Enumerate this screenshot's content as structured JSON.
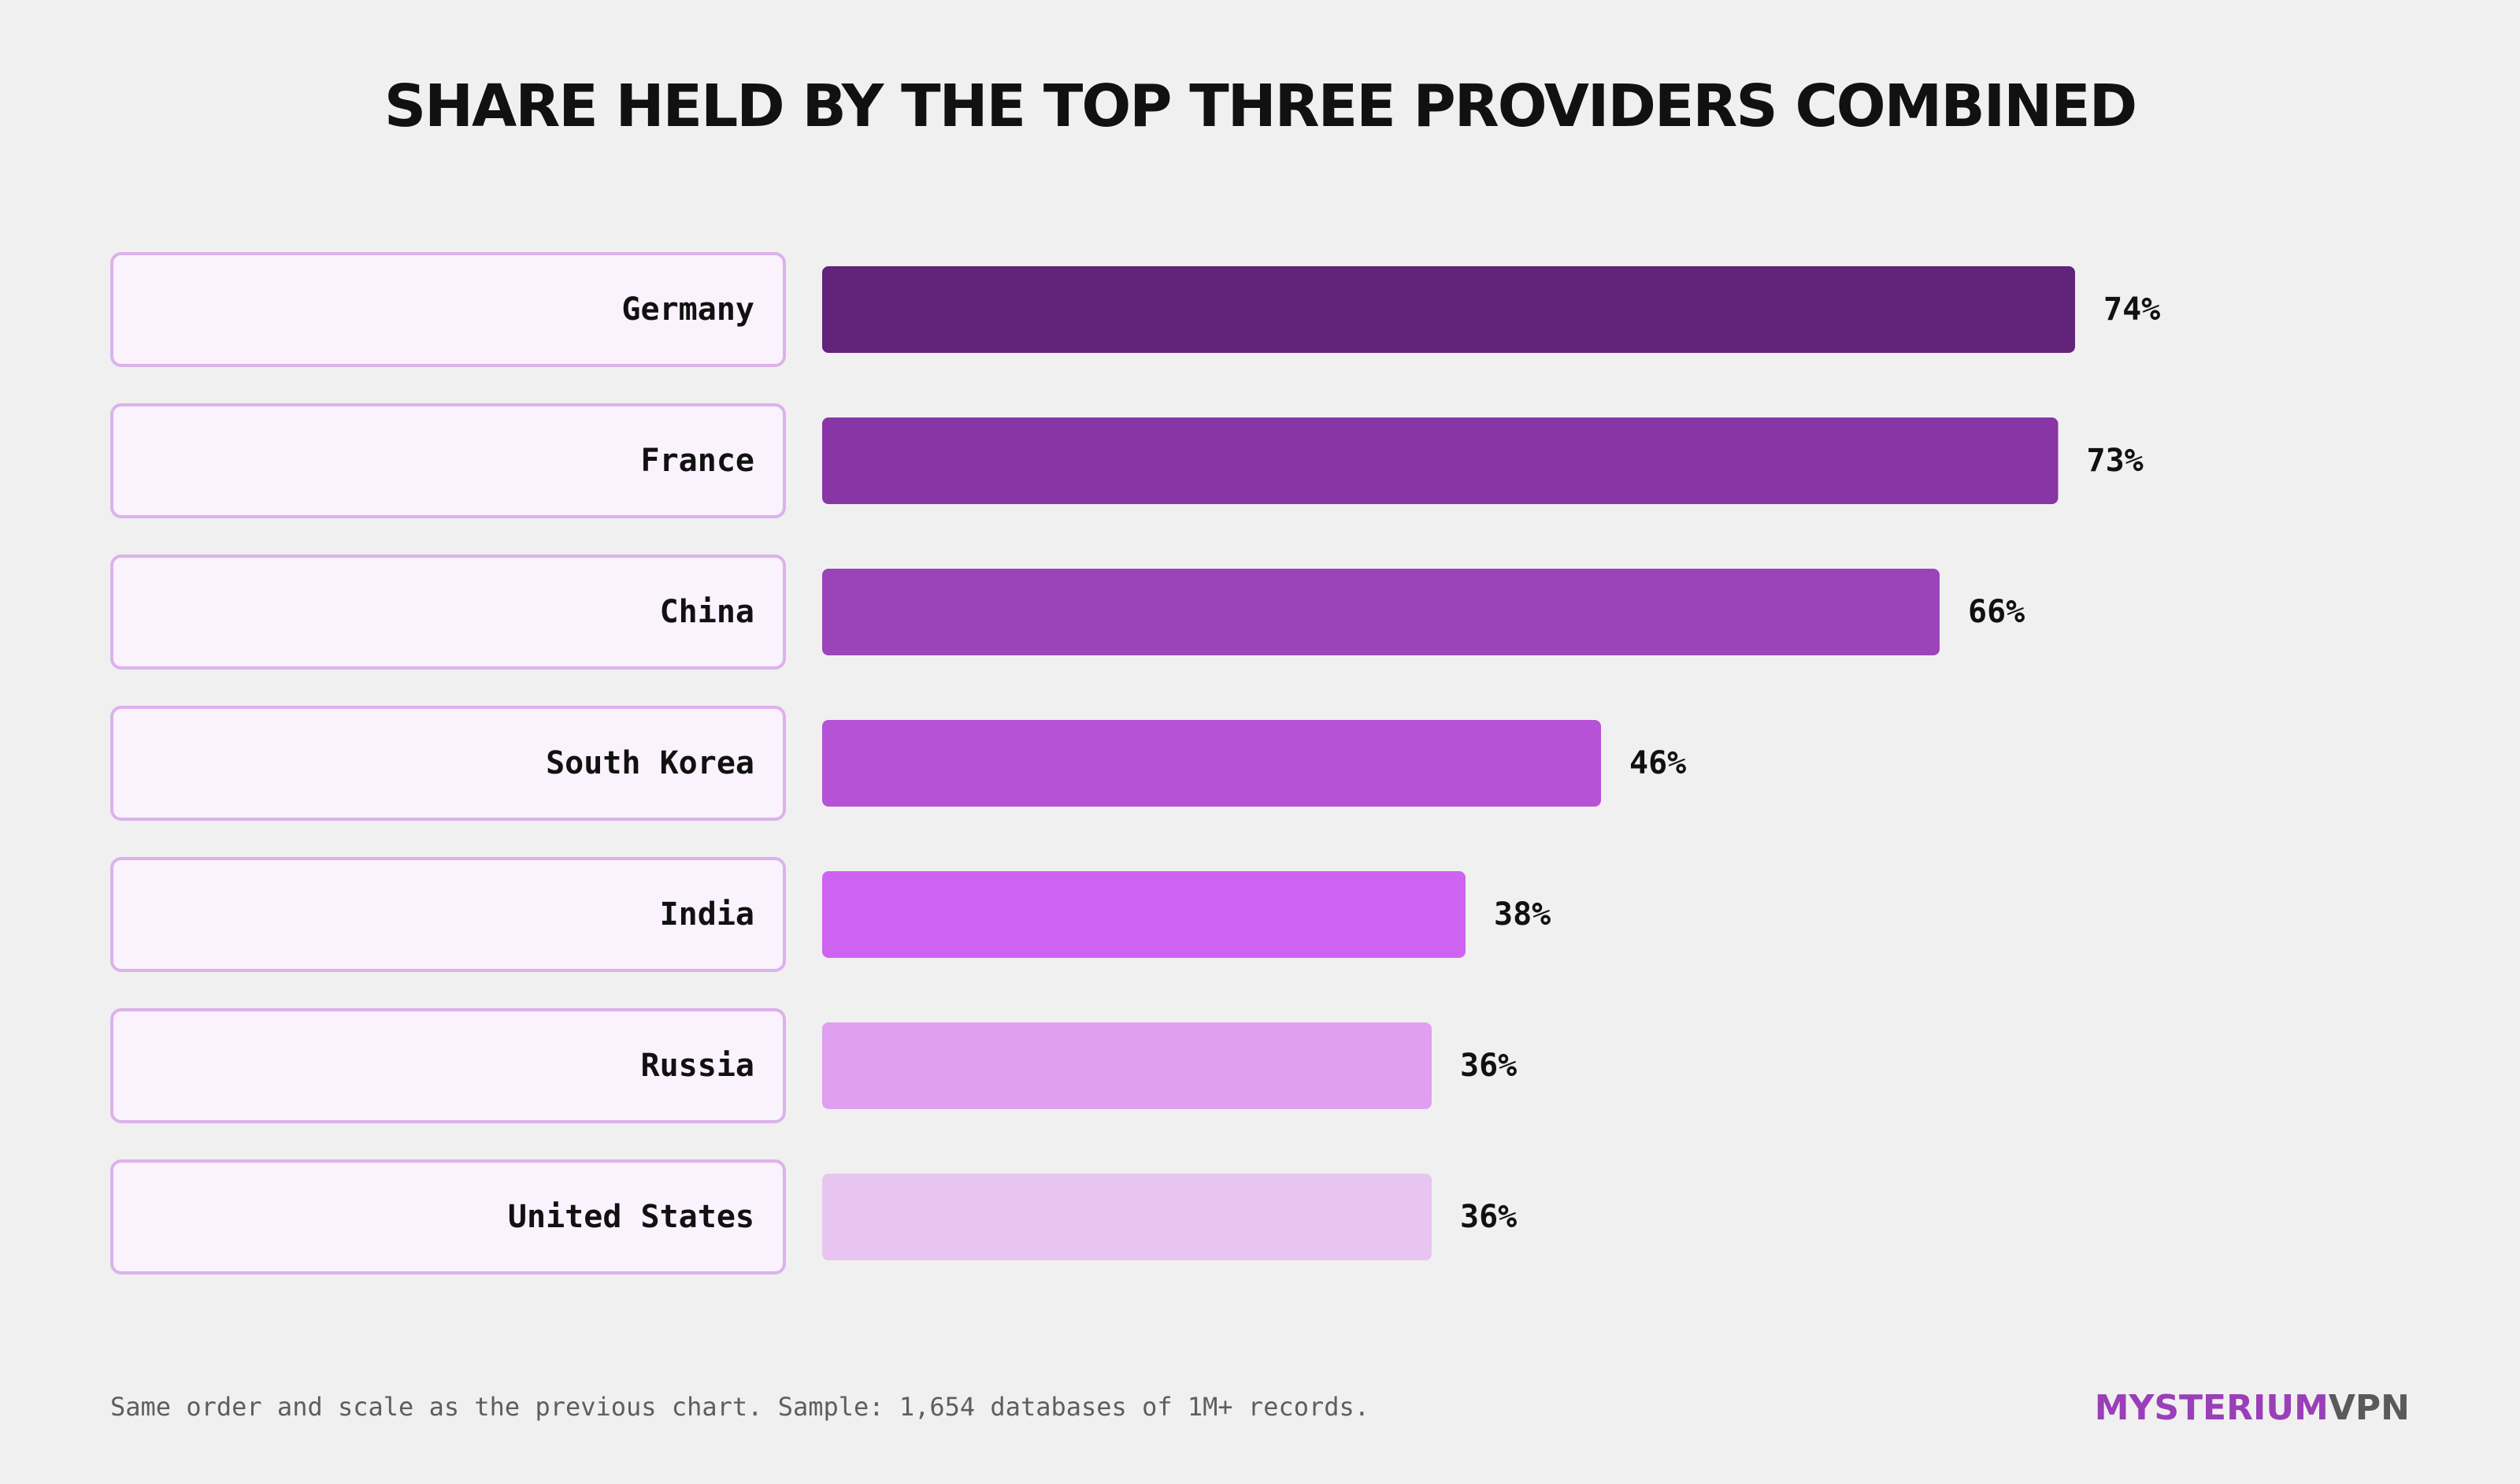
{
  "chart_data": {
    "type": "bar",
    "orientation": "horizontal",
    "title": "SHARE HELD BY THE TOP THREE PROVIDERS COMBINED",
    "categories": [
      "Germany",
      "France",
      "China",
      "South Korea",
      "India",
      "Russia",
      "United States"
    ],
    "values": [
      74,
      73,
      66,
      46,
      38,
      36,
      36
    ],
    "value_labels": [
      "74%",
      "73%",
      "66%",
      "46%",
      "38%",
      "36%",
      "36%"
    ],
    "unit": "%",
    "bar_colors": [
      "#61247a",
      "#8835a6",
      "#9b43b9",
      "#b652d6",
      "#cf63f1",
      "#e09ff0",
      "#e8c4f0"
    ],
    "grid": false,
    "legend": "none"
  },
  "footnote": "Same order and scale as the previous chart. Sample: 1,654 databases of 1M+ records.",
  "brand": {
    "part1": "MYSTERIUM",
    "part2": "VPN"
  }
}
